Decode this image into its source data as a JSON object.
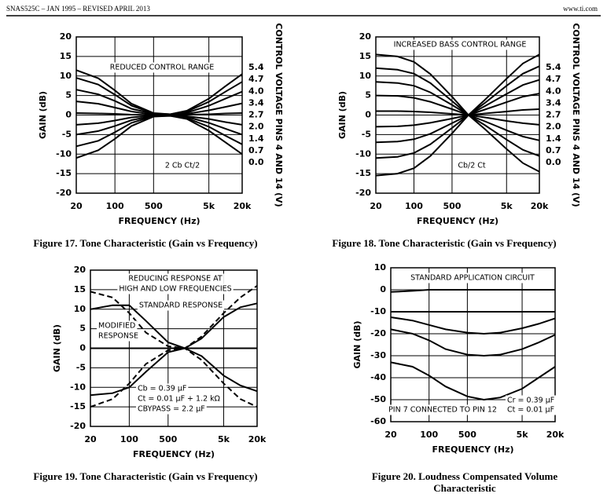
{
  "header": {
    "left": "SNAS525C – JAN 1995 – REVISED APRIL 2013",
    "right": "www.ti.com"
  },
  "chart_data": [
    {
      "type": "line",
      "caption": "Figure 17. Tone Characteristic (Gain vs Frequency)",
      "x_label": "FREQUENCY (Hz)",
      "y_label": "GAIN (dB)",
      "log_x": true,
      "grid": true,
      "legend_title": "CONTROL VOLTAGE PINS 4 AND 14 (V)",
      "legend": "right",
      "annotations": [
        "REDUCED CONTROL RANGE",
        "2 Cb   Ct/2"
      ],
      "xlim": [
        20,
        20000
      ],
      "ylim": [
        -20,
        20
      ],
      "xticks": [
        20,
        100,
        500,
        {
          "value": 5000,
          "label": "5k"
        },
        {
          "value": 20000,
          "label": "20k"
        }
      ],
      "yticks": [
        -20,
        -15,
        -10,
        -5,
        0,
        5,
        10,
        15,
        20
      ],
      "x": [
        20,
        50,
        100,
        200,
        500,
        1000,
        2000,
        5000,
        10000,
        20000
      ],
      "series": [
        {
          "name": "5.4",
          "color": "#000",
          "values": [
            11.5,
            9.4,
            6.3,
            2.9,
            0.5,
            0.2,
            1.1,
            4.2,
            7.4,
            10.5
          ]
        },
        {
          "name": "4.7",
          "color": "#000",
          "values": [
            9.5,
            7.8,
            5.2,
            2.4,
            0.4,
            0.2,
            0.9,
            3.4,
            6,
            8.5
          ]
        },
        {
          "name": "4.0",
          "color": "#000",
          "values": [
            6.5,
            5.3,
            3.6,
            1.6,
            0.3,
            0.1,
            0.6,
            2.4,
            4.2,
            6
          ]
        },
        {
          "name": "3.4",
          "color": "#000",
          "values": [
            3.5,
            2.9,
            1.9,
            0.9,
            0.1,
            0.1,
            0.3,
            1.2,
            2.1,
            3
          ]
        },
        {
          "name": "2.7",
          "color": "#000",
          "values": [
            0.5,
            0.4,
            0.3,
            0.1,
            0,
            0,
            0.1,
            0.2,
            0.4,
            0.5
          ]
        },
        {
          "name": "2.0",
          "color": "#000",
          "values": [
            -2.5,
            -2.1,
            -1.4,
            -0.6,
            -0.1,
            -0.1,
            -0.3,
            -1,
            -1.8,
            -2.5
          ]
        },
        {
          "name": "1.4",
          "color": "#000",
          "values": [
            -5,
            -4.1,
            -2.8,
            -1.3,
            -0.2,
            -0.1,
            -0.5,
            -2,
            -3.5,
            -5
          ]
        },
        {
          "name": "0.7",
          "color": "#000",
          "values": [
            -8,
            -6.6,
            -4.4,
            -2,
            -0.3,
            -0.2,
            -0.8,
            -3,
            -5.3,
            -7.5
          ]
        },
        {
          "name": "0.0",
          "color": "#000",
          "values": [
            -11,
            -9,
            -6.1,
            -2.8,
            -0.4,
            -0.2,
            -1,
            -4,
            -7,
            -10
          ]
        }
      ]
    },
    {
      "type": "line",
      "caption": "Figure 18. Tone Characteristic (Gain vs Frequency)",
      "x_label": "FREQUENCY (Hz)",
      "y_label": "GAIN (dB)",
      "log_x": true,
      "grid": true,
      "legend_title": "CONTROL VOLTAGE PINS 4 AND 14 (V)",
      "legend": "right",
      "annotations": [
        "INCREASED BASS CONTROL RANGE",
        "Cb/2   Ct"
      ],
      "xlim": [
        20,
        20000
      ],
      "ylim": [
        -20,
        20
      ],
      "xticks": [
        20,
        100,
        500,
        {
          "value": 5000,
          "label": "5k"
        },
        {
          "value": 20000,
          "label": "20k"
        }
      ],
      "yticks": [
        -20,
        -15,
        -10,
        -5,
        0,
        5,
        10,
        15,
        20
      ],
      "x": [
        20,
        50,
        100,
        200,
        500,
        1000,
        2000,
        5000,
        10000,
        20000
      ],
      "series": [
        {
          "name": "5.4",
          "color": "#000",
          "values": [
            15.5,
            15,
            13.6,
            10.5,
            4.7,
            0,
            3.9,
            9.3,
            13.2,
            15.5
          ]
        },
        {
          "name": "4.7",
          "color": "#000",
          "values": [
            12,
            11.6,
            10.6,
            8.2,
            3.6,
            0,
            3.1,
            7.5,
            10.6,
            12.5
          ]
        },
        {
          "name": "4.0",
          "color": "#000",
          "values": [
            8.5,
            8.2,
            7.5,
            5.8,
            2.6,
            0,
            2.3,
            5.4,
            7.7,
            9
          ]
        },
        {
          "name": "3.4",
          "color": "#000",
          "values": [
            5,
            4.9,
            4.4,
            3.4,
            1.5,
            0,
            1.4,
            3.3,
            4.7,
            5.5
          ]
        },
        {
          "name": "2.7",
          "color": "#000",
          "values": [
            1,
            1,
            0.9,
            0.7,
            0.3,
            0,
            0.4,
            0.9,
            1.3,
            1.5
          ]
        },
        {
          "name": "2.0",
          "color": "#000",
          "values": [
            -3,
            -2.9,
            -2.6,
            -2,
            -0.9,
            0,
            -0.6,
            -1.5,
            -2.1,
            -2.5
          ]
        },
        {
          "name": "1.4",
          "color": "#000",
          "values": [
            -7,
            -6.8,
            -6.2,
            -4.8,
            -2.1,
            0,
            -1.6,
            -3.9,
            -5.5,
            -6.5
          ]
        },
        {
          "name": "0.7",
          "color": "#000",
          "values": [
            -11,
            -10.7,
            -9.7,
            -7.5,
            -3.3,
            0,
            -2.6,
            -6.3,
            -8.9,
            -10.5
          ]
        },
        {
          "name": "0.0",
          "color": "#000",
          "values": [
            -15.5,
            -15,
            -13.6,
            -10.5,
            -4.7,
            0,
            -3.6,
            -8.7,
            -12.3,
            -14.5
          ]
        }
      ]
    },
    {
      "type": "line",
      "caption": "Figure 19. Tone Characteristic (Gain vs Frequency)",
      "x_label": "FREQUENCY (Hz)",
      "y_label": "GAIN (dB)",
      "log_x": true,
      "grid": true,
      "annotations": [
        "REDUCING RESPONSE AT",
        "HIGH AND LOW FREQUENCIES",
        "STANDARD RESPONSE",
        "MODIFIED",
        "RESPONSE",
        "Cb = 0.39 μF",
        "Ct = 0.01 μF + 1.2 kΩ",
        "CBYPASS = 2.2 μF"
      ],
      "xlim": [
        20,
        20000
      ],
      "ylim": [
        -20,
        20
      ],
      "xticks": [
        20,
        100,
        500,
        {
          "value": 5000,
          "label": "5k"
        },
        {
          "value": 20000,
          "label": "20k"
        }
      ],
      "yticks": [
        -20,
        -15,
        -10,
        -5,
        0,
        5,
        10,
        15,
        20
      ],
      "x": [
        20,
        50,
        100,
        200,
        500,
        1000,
        2000,
        5000,
        10000,
        20000
      ],
      "series": [
        {
          "color": "#000",
          "dash": true,
          "values": [
            14.5,
            13,
            9,
            4,
            0.5,
            0,
            3,
            9,
            13,
            16
          ]
        },
        {
          "color": "#000",
          "dash": true,
          "values": [
            -15,
            -13,
            -9,
            -4,
            -0.5,
            0,
            -3,
            -9,
            -13,
            -15
          ]
        },
        {
          "color": "#000",
          "values": [
            10,
            11,
            11,
            7,
            1.5,
            0,
            2.5,
            8,
            10.5,
            11.5
          ]
        },
        {
          "color": "#000",
          "values": [
            -12,
            -11.5,
            -10,
            -6,
            -1,
            0,
            -2,
            -7,
            -9.5,
            -11
          ]
        },
        {
          "color": "#000",
          "values": [
            0,
            0,
            0,
            0,
            0,
            0,
            0,
            0,
            0,
            0
          ]
        }
      ]
    },
    {
      "type": "line",
      "caption": "Figure 20. Loudness Compensated Volume Characteristic",
      "x_label": "FREQUENCY (Hz)",
      "y_label": "GAIN (dB)",
      "log_x": true,
      "grid": true,
      "annotations": [
        "STANDARD APPLICATION CIRCUIT",
        "PIN 7 CONNECTED TO PIN 12",
        "Cr = 0.39 μF",
        "Ct = 0.01 μF"
      ],
      "xlim": [
        20,
        20000
      ],
      "ylim": [
        -60,
        10
      ],
      "xticks": [
        20,
        100,
        500,
        {
          "value": 5000,
          "label": "5k"
        },
        {
          "value": 20000,
          "label": "20k"
        }
      ],
      "yticks": [
        -60,
        -50,
        -40,
        -30,
        -20,
        -10,
        0,
        10
      ],
      "x": [
        20,
        50,
        100,
        200,
        500,
        1000,
        2000,
        5000,
        10000,
        20000
      ],
      "series": [
        {
          "color": "#000",
          "values": [
            -1,
            -0.5,
            0,
            0,
            0,
            0,
            0,
            0,
            0,
            0
          ]
        },
        {
          "color": "#000",
          "values": [
            -10,
            -10,
            -10,
            -10,
            -10,
            -10,
            -10,
            -10,
            -10,
            -10
          ]
        },
        {
          "color": "#000",
          "values": [
            -12.5,
            -14,
            -16,
            -18,
            -19.5,
            -20,
            -19.5,
            -17.5,
            -15.5,
            -13
          ]
        },
        {
          "color": "#000",
          "values": [
            -18,
            -20,
            -23,
            -27,
            -29.5,
            -30,
            -29.5,
            -27,
            -24,
            -20.5
          ]
        },
        {
          "color": "#000",
          "values": [
            -33,
            -35,
            -39,
            -44,
            -48.5,
            -50,
            -49,
            -45,
            -40,
            -35
          ]
        }
      ]
    }
  ]
}
